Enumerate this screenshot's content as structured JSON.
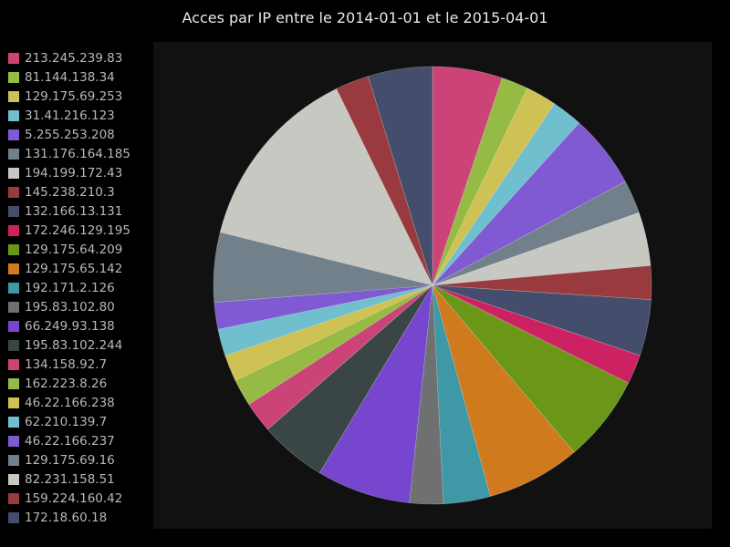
{
  "chart_data": {
    "type": "pie",
    "title": "Acces par IP entre le 2014-01-01 et le 2015-04-01",
    "legend_position": "left",
    "slices": [
      {
        "label": "213.245.239.83",
        "value": 5.2,
        "color": "#cc4477"
      },
      {
        "label": "81.144.138.34",
        "value": 2.0,
        "color": "#95bb44"
      },
      {
        "label": "129.175.69.253",
        "value": 2.3,
        "color": "#cfc255"
      },
      {
        "label": "31.41.216.123",
        "value": 2.3,
        "color": "#6fbfcf"
      },
      {
        "label": "5.255.253.208",
        "value": 5.5,
        "color": "#7f5ad2"
      },
      {
        "label": "131.176.164.185",
        "value": 2.5,
        "color": "#71808a"
      },
      {
        "label": "194.199.172.43",
        "value": 4.0,
        "color": "#c8c8c2"
      },
      {
        "label": "145.238.210.3",
        "value": 2.5,
        "color": "#993b3e"
      },
      {
        "label": "132.166.13.131",
        "value": 4.2,
        "color": "#444e6c"
      },
      {
        "label": "172.246.129.195",
        "value": 2.2,
        "color": "#cc2262"
      },
      {
        "label": "129.175.64.209",
        "value": 6.5,
        "color": "#6a9717"
      },
      {
        "label": "129.175.65.142",
        "value": 7.0,
        "color": "#cf7a1c"
      },
      {
        "label": "192.171.2.126",
        "value": 3.5,
        "color": "#3e98a6"
      },
      {
        "label": "195.83.102.80",
        "value": 2.5,
        "color": "#6e7071"
      },
      {
        "label": "66.249.93.138",
        "value": 7.0,
        "color": "#7746cf"
      },
      {
        "label": "195.83.102.244",
        "value": 5.0,
        "color": "#3a4646"
      },
      {
        "label": "134.158.92.7",
        "value": 2.3,
        "color": "#cc4477"
      },
      {
        "label": "162.223.8.26",
        "value": 2.0,
        "color": "#95bb44"
      },
      {
        "label": "46.22.166.238",
        "value": 2.0,
        "color": "#cfc255"
      },
      {
        "label": "62.210.139.7",
        "value": 2.0,
        "color": "#6fbfcf"
      },
      {
        "label": "46.22.166.237",
        "value": 2.0,
        "color": "#7f5ad2"
      },
      {
        "label": "129.175.69.16",
        "value": 5.2,
        "color": "#71808a"
      },
      {
        "label": "82.231.158.51",
        "value": 14.0,
        "color": "#c8c8c2"
      },
      {
        "label": "159.224.160.42",
        "value": 2.5,
        "color": "#993b3e"
      },
      {
        "label": "172.18.60.18",
        "value": 4.8,
        "color": "#444e6c"
      }
    ]
  }
}
